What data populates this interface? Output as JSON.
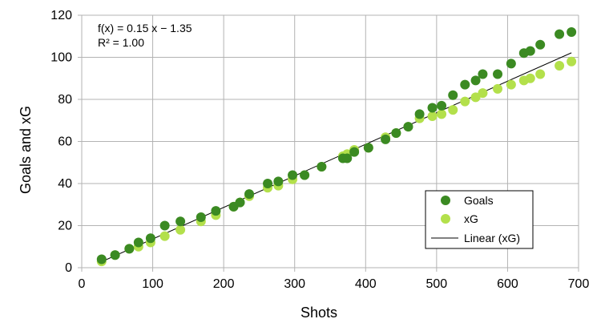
{
  "chart_data": {
    "type": "scatter",
    "title": "",
    "xlabel": "Shots",
    "ylabel": "Goals and xG",
    "xlim": [
      0,
      700
    ],
    "ylim": [
      0,
      120
    ],
    "xticks": [
      0,
      100,
      200,
      300,
      400,
      500,
      600,
      700
    ],
    "yticks": [
      0,
      20,
      40,
      60,
      80,
      100,
      120
    ],
    "grid": true,
    "legend_position": "bottom-right",
    "annotation_lines": [
      "f(x) = 0.15 x − 1.35",
      "R² = 1.00"
    ],
    "series": [
      {
        "name": "Goals",
        "color": "#3b8a22",
        "x": [
          28,
          47,
          67,
          80,
          97,
          117,
          139,
          168,
          189,
          214,
          223,
          236,
          262,
          277,
          297,
          314,
          338,
          368,
          374,
          384,
          404,
          428,
          443,
          460,
          476,
          494,
          507,
          523,
          540,
          555,
          565,
          586,
          605,
          623,
          632,
          646,
          673,
          690
        ],
        "values": [
          4,
          6,
          9,
          12,
          14,
          20,
          22,
          24,
          27,
          29,
          31,
          35,
          40,
          41,
          44,
          44,
          48,
          52,
          52,
          55,
          57,
          61,
          64,
          67,
          73,
          76,
          77,
          82,
          87,
          89,
          92,
          92,
          97,
          102,
          103,
          106,
          111,
          112
        ]
      },
      {
        "name": "xG",
        "color": "#b3e04b",
        "x": [
          28,
          47,
          67,
          80,
          97,
          117,
          139,
          168,
          189,
          214,
          223,
          236,
          262,
          277,
          297,
          314,
          338,
          368,
          374,
          384,
          404,
          428,
          443,
          460,
          476,
          494,
          507,
          523,
          540,
          555,
          565,
          586,
          605,
          623,
          632,
          646,
          673,
          690
        ],
        "values": [
          3,
          6,
          9,
          10,
          12,
          15,
          18,
          22,
          25,
          29,
          31,
          34,
          38,
          39,
          42,
          44,
          48,
          53,
          54,
          56,
          57,
          62,
          64,
          67,
          71,
          72,
          73,
          75,
          79,
          81,
          83,
          85,
          87,
          89,
          90,
          92,
          96,
          98
        ]
      }
    ],
    "trendline": {
      "name": "Linear (xG)",
      "slope": 0.15,
      "intercept": -1.35,
      "x_range": [
        28,
        690
      ],
      "color": "#000000"
    }
  }
}
